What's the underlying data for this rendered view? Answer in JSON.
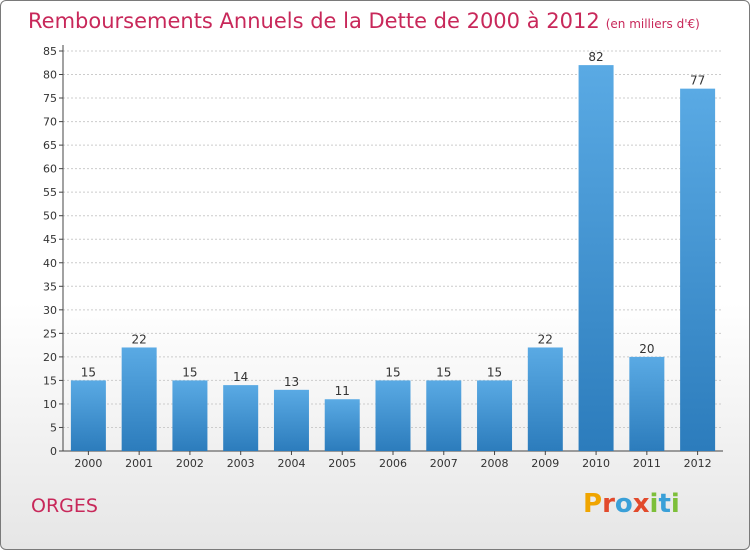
{
  "title": "Remboursements Annuels de la Dette de 2000 à 2012",
  "unit": "(en milliers d'€)",
  "commune": "ORGES",
  "logo": {
    "text": "Proxiti",
    "colors": [
      "#f0a500",
      "#e24a2c",
      "#3aa0d8",
      "#e24a2c",
      "#7dbf3a",
      "#3aa0d8",
      "#7dbf3a"
    ]
  },
  "colors": {
    "bar_top": "#5aaae4",
    "bar_bottom": "#2c7cbc",
    "title": "#c8285a",
    "grid": "#cccccc"
  },
  "chart_data": {
    "type": "bar",
    "categories": [
      "2000",
      "2001",
      "2002",
      "2003",
      "2004",
      "2005",
      "2006",
      "2007",
      "2008",
      "2009",
      "2010",
      "2011",
      "2012"
    ],
    "values": [
      15,
      22,
      15,
      14,
      13,
      11,
      15,
      15,
      15,
      22,
      82,
      20,
      77
    ],
    "title": "Remboursements Annuels de la Dette de 2000 à 2012",
    "xlabel": "",
    "ylabel": "",
    "ylim": [
      0,
      85
    ],
    "yticks": [
      0,
      5,
      10,
      15,
      20,
      25,
      30,
      35,
      40,
      45,
      50,
      55,
      60,
      65,
      70,
      75,
      80,
      85
    ],
    "grid": true
  }
}
